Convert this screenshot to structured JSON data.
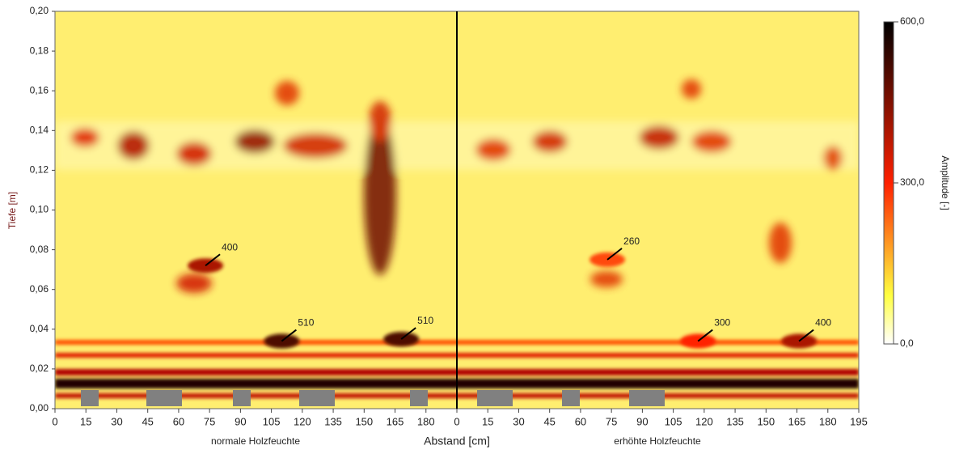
{
  "chart_data": {
    "type": "heatmap",
    "ylabel": "Tiefe [m]",
    "xlabel": "Abstand [cm]",
    "ylim": [
      0,
      0.2
    ],
    "yticks": [
      {
        "value": 0,
        "label": "0,00"
      },
      {
        "value": 0.02,
        "label": "0,02"
      },
      {
        "value": 0.04,
        "label": "0,04"
      },
      {
        "value": 0.06,
        "label": "0,06"
      },
      {
        "value": 0.08,
        "label": "0,08"
      },
      {
        "value": 0.1,
        "label": "0,10"
      },
      {
        "value": 0.12,
        "label": "0,12"
      },
      {
        "value": 0.14,
        "label": "0,14"
      },
      {
        "value": 0.16,
        "label": "0,16"
      },
      {
        "value": 0.18,
        "label": "0,18"
      },
      {
        "value": 0.2,
        "label": "0,20"
      }
    ],
    "panels": [
      {
        "label": "normale Holzfeuchte",
        "xlim": [
          0,
          195
        ],
        "xticks": [
          0,
          15,
          30,
          45,
          60,
          75,
          90,
          105,
          120,
          135,
          150,
          165,
          180
        ],
        "annotations": [
          {
            "x": 73,
            "y": 0.072,
            "value": 400
          },
          {
            "x": 110,
            "y": 0.034,
            "value": 510
          },
          {
            "x": 168,
            "y": 0.035,
            "value": 510
          }
        ]
      },
      {
        "label": "erhöhte Holzfeuchte",
        "xlim": [
          0,
          195
        ],
        "xticks": [
          0,
          15,
          30,
          45,
          60,
          75,
          90,
          105,
          120,
          135,
          150,
          165,
          180,
          195
        ],
        "annotations": [
          {
            "x": 73,
            "y": 0.075,
            "value": 260
          },
          {
            "x": 117,
            "y": 0.034,
            "value": 300
          },
          {
            "x": 166,
            "y": 0.034,
            "value": 400
          }
        ]
      }
    ],
    "colorbar": {
      "label": "Amplitude [-]",
      "lim": [
        0,
        600
      ],
      "ticks": [
        {
          "value": 0,
          "label": "0,0"
        },
        {
          "value": 300,
          "label": "300,0"
        },
        {
          "value": 600,
          "label": "600,0"
        }
      ]
    },
    "colors": [
      "#ffffff",
      "#ffff40",
      "#ff2000",
      "#000000"
    ]
  }
}
